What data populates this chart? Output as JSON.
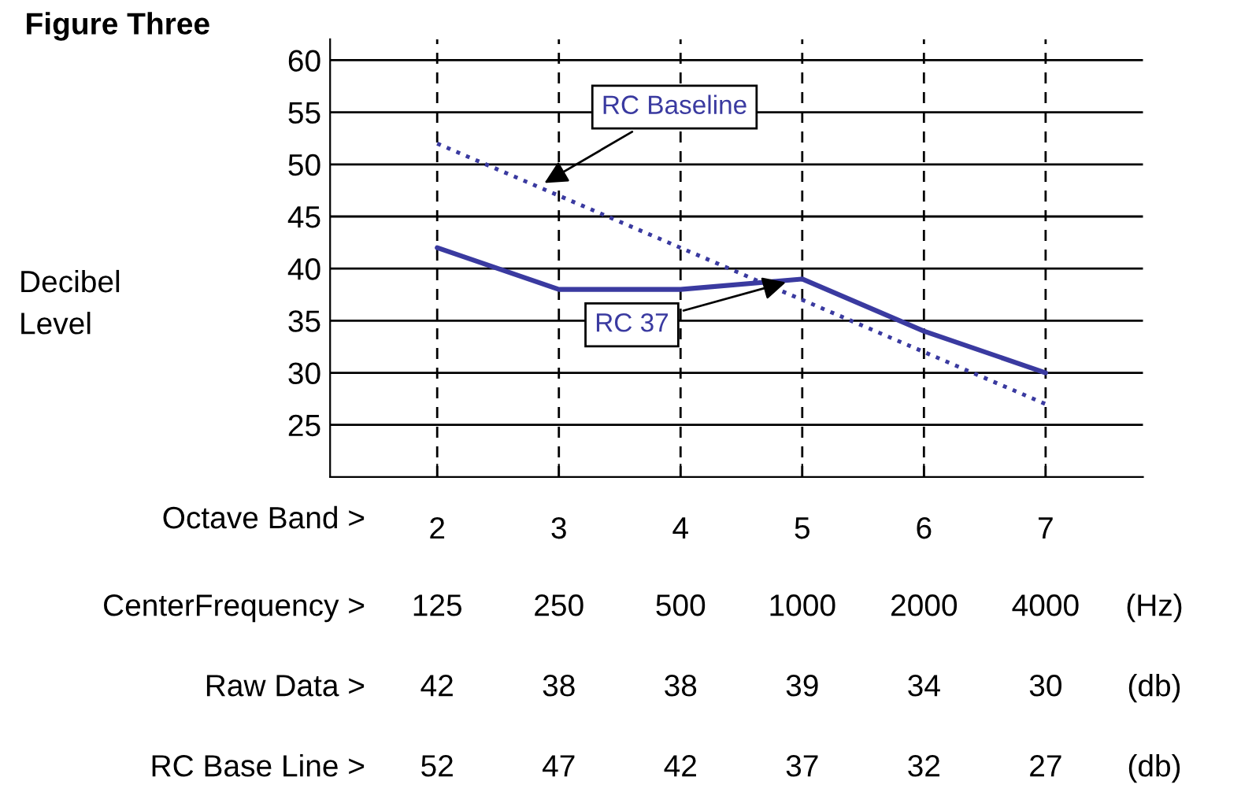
{
  "chart_data": {
    "type": "line",
    "title": "Figure Three",
    "xlabel": "Octave Band >",
    "categories": [
      "2",
      "3",
      "4",
      "5",
      "6",
      "7"
    ],
    "series": [
      {
        "name": "RC 37",
        "color": "#3a3aa0",
        "line_style": "solid",
        "values": [
          42,
          38,
          38,
          39,
          34,
          30
        ],
        "value_labels": [
          "42",
          "38",
          "38",
          "39",
          "34",
          "30"
        ]
      },
      {
        "name": "RC Baseline",
        "color": "#3a3aa0",
        "line_style": "dotted",
        "values": [
          52,
          47,
          42,
          37,
          32,
          27
        ],
        "value_labels": [
          "52",
          "47",
          "42",
          "37",
          "32",
          "27"
        ]
      }
    ],
    "ylim": [
      20,
      62
    ],
    "yticks": [
      25,
      30,
      35,
      40,
      45,
      50,
      55,
      60
    ],
    "grid": true,
    "marker": "none",
    "legend": false,
    "annotations": [
      "Decibel\nLevel",
      "CenterFrequency >",
      "(Hz)",
      "Raw Data >",
      "(db)",
      "RC Base Line >",
      "(db)",
      "125",
      "250",
      "500",
      "1000",
      "2000",
      "4000"
    ]
  }
}
